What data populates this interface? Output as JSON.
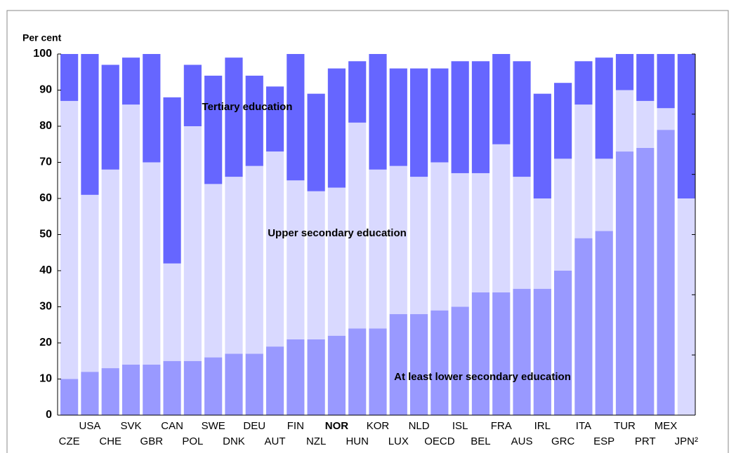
{
  "chart_data": {
    "type": "stacked_bar",
    "y_label": "Per cent",
    "categories": [
      "CZE",
      "USA",
      "CHE",
      "SVK",
      "GBR",
      "CAN",
      "POL",
      "SWE",
      "DNK",
      "DEU",
      "AUT",
      "FIN",
      "NZL",
      "NOR",
      "HUN",
      "KOR",
      "LUX",
      "NLD",
      "OECD",
      "ISL",
      "BEL",
      "FRA",
      "AUS",
      "IRL",
      "GRC",
      "ITA",
      "ESP",
      "TUR",
      "PRT",
      "MEX",
      "JPN²"
    ],
    "series": [
      {
        "name": "At least lower secondary education",
        "color": "#9999ff",
        "values": [
          10,
          12,
          13,
          14,
          14,
          15,
          15,
          16,
          17,
          17,
          19,
          21,
          21,
          22,
          24,
          24,
          28,
          28,
          29,
          30,
          34,
          34,
          35,
          35,
          40,
          49,
          51,
          73,
          74,
          79,
          null
        ]
      },
      {
        "name": "Upper secondary education",
        "color": "#d9d9ff",
        "values": [
          77,
          49,
          55,
          72,
          56,
          27,
          65,
          48,
          49,
          52,
          54,
          44,
          41,
          41,
          57,
          44,
          41,
          38,
          41,
          37,
          33,
          41,
          31,
          25,
          31,
          37,
          20,
          17,
          13,
          6,
          60
        ]
      },
      {
        "name": "Tertiary education",
        "color": "#6666ff",
        "values": [
          13,
          39,
          29,
          13,
          30,
          46,
          17,
          30,
          33,
          25,
          18,
          35,
          27,
          33,
          17,
          32,
          27,
          30,
          26,
          31,
          31,
          25,
          32,
          29,
          21,
          12,
          28,
          10,
          13,
          15,
          40
        ]
      }
    ],
    "ylim": [
      0,
      100
    ],
    "yticks": [
      0,
      10,
      20,
      30,
      40,
      50,
      60,
      70,
      80,
      90,
      100
    ],
    "highlight_category": "NOR"
  }
}
